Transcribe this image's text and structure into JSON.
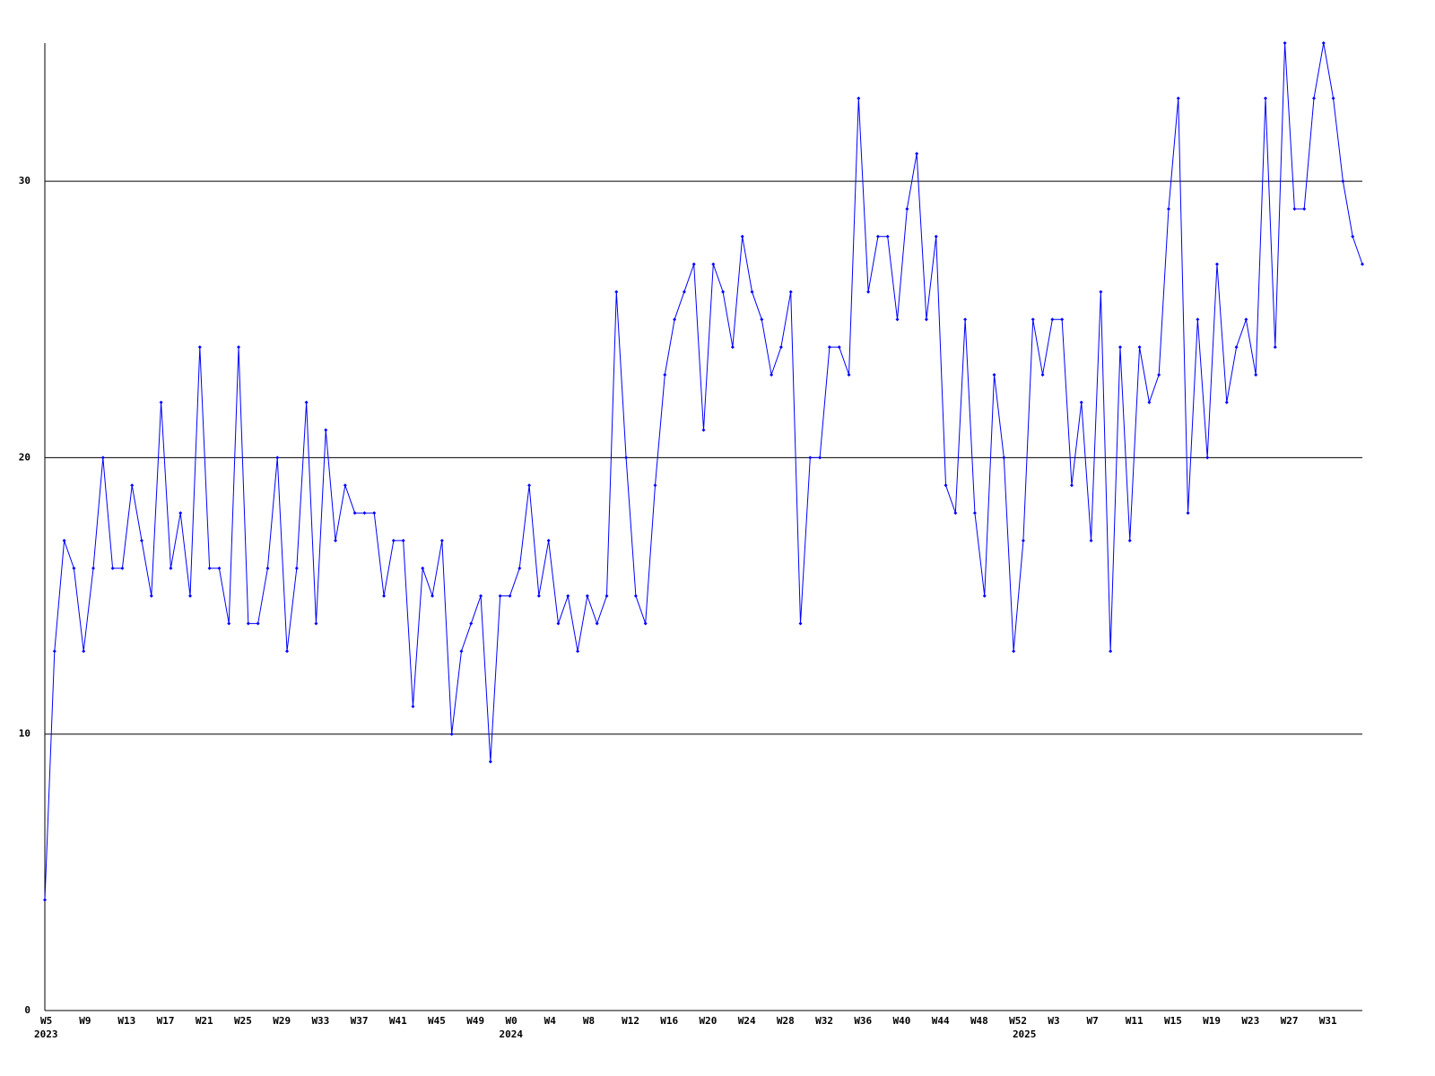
{
  "chart_data": {
    "type": "line",
    "categories": [
      "W5",
      null,
      null,
      null,
      "W9",
      null,
      null,
      null,
      "W13",
      null,
      null,
      null,
      "W17",
      null,
      null,
      null,
      "W21",
      null,
      null,
      null,
      "W25",
      null,
      null,
      null,
      "W29",
      null,
      null,
      null,
      "W33",
      null,
      null,
      null,
      "W37",
      null,
      null,
      null,
      "W41",
      null,
      null,
      null,
      "W45",
      null,
      null,
      null,
      "W49",
      null,
      null,
      null,
      "W0",
      null,
      null,
      null,
      "W4",
      null,
      null,
      null,
      "W8",
      null,
      null,
      null,
      "W12",
      null,
      null,
      null,
      "W16",
      null,
      null,
      null,
      "W20",
      null,
      null,
      null,
      "W24",
      null,
      null,
      null,
      "W28",
      null,
      null,
      null,
      "W32",
      null,
      null,
      null,
      "W36",
      null,
      null,
      null,
      "W40",
      null,
      null,
      null,
      "W44",
      null,
      null,
      null,
      "W48",
      null,
      null,
      null,
      "W52",
      null,
      null,
      null,
      "W3",
      null,
      null,
      null,
      "W7",
      null,
      null,
      null,
      "W11",
      null,
      null,
      null,
      "W15",
      null,
      null,
      null,
      "W19",
      null,
      null,
      null,
      "W23",
      null,
      null,
      null,
      "W27",
      null,
      null,
      null,
      "W31",
      null,
      null,
      null,
      null
    ],
    "category_years": [
      "2023",
      null,
      null,
      null,
      null,
      null,
      null,
      null,
      null,
      null,
      null,
      null,
      null,
      null,
      null,
      null,
      null,
      null,
      null,
      null,
      null,
      null,
      null,
      null,
      null,
      null,
      null,
      null,
      null,
      null,
      null,
      null,
      null,
      null,
      null,
      null,
      null,
      null,
      null,
      null,
      null,
      null,
      null,
      null,
      null,
      null,
      null,
      null,
      "2024",
      null,
      null,
      null,
      null,
      null,
      null,
      null,
      null,
      null,
      null,
      null,
      null,
      null,
      null,
      null,
      null,
      null,
      null,
      null,
      null,
      null,
      null,
      null,
      null,
      null,
      null,
      null,
      null,
      null,
      null,
      null,
      null,
      null,
      null,
      null,
      null,
      null,
      null,
      null,
      null,
      null,
      null,
      null,
      null,
      null,
      null,
      null,
      null,
      null,
      null,
      null,
      null,
      "2025",
      null,
      null,
      null,
      null,
      null,
      null,
      null,
      null,
      null,
      null,
      null,
      null,
      null,
      null,
      null,
      null,
      null,
      null,
      null,
      null,
      null,
      null,
      null,
      null,
      null,
      null,
      null,
      null,
      null,
      null,
      null,
      null,
      null,
      null,
      null
    ],
    "values": [
      4,
      13,
      17,
      16,
      13,
      16,
      20,
      16,
      16,
      19,
      17,
      15,
      22,
      16,
      18,
      15,
      24,
      16,
      16,
      14,
      24,
      14,
      14,
      16,
      20,
      13,
      16,
      22,
      14,
      21,
      17,
      19,
      18,
      18,
      18,
      15,
      17,
      17,
      11,
      16,
      15,
      17,
      10,
      13,
      14,
      15,
      9,
      15,
      15,
      16,
      19,
      15,
      17,
      14,
      15,
      13,
      15,
      14,
      15,
      26,
      20,
      15,
      14,
      19,
      23,
      25,
      26,
      27,
      21,
      27,
      26,
      24,
      28,
      26,
      25,
      23,
      24,
      26,
      14,
      20,
      20,
      24,
      24,
      23,
      33,
      26,
      28,
      28,
      25,
      29,
      31,
      25,
      28,
      19,
      18,
      25,
      18,
      15,
      23,
      20,
      13,
      17,
      25,
      23,
      25,
      25,
      19,
      22,
      17,
      26,
      13,
      24,
      17,
      24,
      22,
      23,
      29,
      33,
      18,
      25,
      20,
      27,
      22,
      24,
      25,
      23,
      33,
      24,
      35,
      29,
      29,
      33,
      35,
      33,
      30,
      28,
      27
    ],
    "color": "#0000ff",
    "ylim": [
      0,
      35
    ],
    "yticks": [
      0,
      10,
      20,
      30
    ],
    "grid": true
  }
}
